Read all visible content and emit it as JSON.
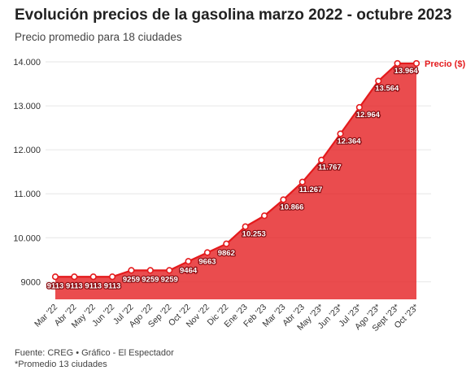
{
  "chart_data": {
    "type": "area",
    "title": "Evolución precios de la gasolina marzo 2022 - octubre 2023",
    "subtitle": "Precio promedio para 18 ciudades",
    "categories": [
      "Mar '22",
      "Abr '22",
      "May '22",
      "Jun '22",
      "Jul '22",
      "Ago '22",
      "Sep '22",
      "Oct '22",
      "Nov '22",
      "Dic '22",
      "Ene '23",
      "Feb '23",
      "Mar '23",
      "Abr '23",
      "May '23*",
      "Jun '23*",
      "Jul '23*",
      "Ago '23*",
      "Sept '23*",
      "Oct '23*"
    ],
    "series": [
      {
        "name": "Precio ($)",
        "color": "#e41a1c",
        "values": [
          9113,
          9113,
          9113,
          9113,
          9259,
          9259,
          9259,
          9464,
          9663,
          9862,
          10253,
          10500,
          10866,
          11267,
          11767,
          12364,
          12964,
          13564,
          13964,
          13964
        ],
        "labels": [
          "9113",
          "9113",
          "9113",
          "9113",
          "9259",
          "9259",
          "9259",
          "9464",
          "9663",
          "9862",
          "10.253",
          "",
          "10.866",
          "11.267",
          "11.767",
          "12.364",
          "12.964",
          "13.564",
          "13.964",
          ""
        ]
      }
    ],
    "ylim": [
      8600,
      14000
    ],
    "yticks": [
      9000,
      10000,
      11000,
      12000,
      13000,
      14000
    ],
    "ytick_labels": [
      "9000",
      "10.000",
      "11.000",
      "12.000",
      "13.000",
      "14.000"
    ],
    "grid": true,
    "legend": "end-of-line label"
  },
  "footer": {
    "source": "Fuente: CREG • Gráfico - El Espectador",
    "note": "*Promedio 13 ciudades"
  }
}
